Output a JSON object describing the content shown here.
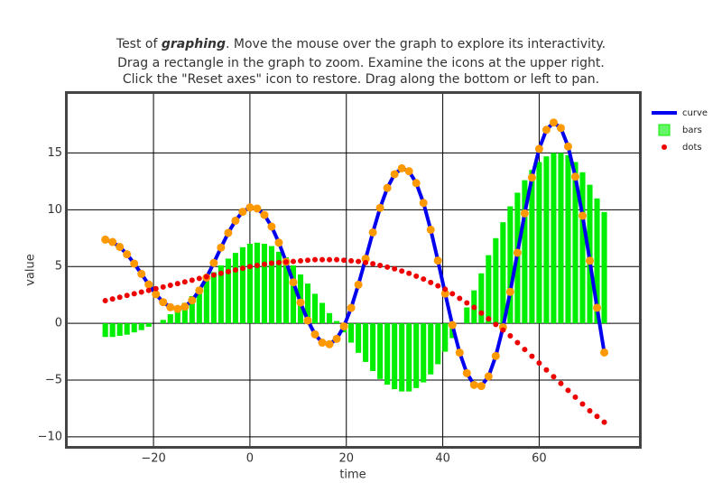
{
  "chart_data": {
    "type": "combo",
    "title": [
      [
        "Test of ",
        "graphing",
        ". Move the mouse over the graph to explore its interactivity."
      ],
      [
        "Drag a rectangle in the graph to zoom. Examine the icons at the upper right."
      ],
      [
        "Click the \"Reset axes\" icon to restore. Drag along the bottom or left to pan."
      ]
    ],
    "x_label": "time",
    "y_label": "value",
    "x": [
      -30,
      -28.5,
      -27,
      -25.5,
      -24,
      -22.5,
      -21,
      -19.5,
      -18,
      -16.5,
      -15,
      -13.5,
      -12,
      -10.5,
      -9,
      -7.5,
      -6,
      -4.5,
      -3,
      -1.5,
      0,
      1.5,
      3,
      4.5,
      6,
      7.5,
      9,
      10.5,
      12,
      13.5,
      15,
      16.5,
      18,
      19.5,
      21,
      22.5,
      24,
      25.5,
      27,
      28.5,
      30,
      31.5,
      33,
      34.5,
      36,
      37.5,
      39,
      40.5,
      42,
      43.5,
      45,
      46.5,
      48,
      49.5,
      51,
      52.5,
      54,
      55.5,
      57,
      58.5,
      60,
      61.5,
      63,
      64.5,
      66,
      67.5,
      69,
      70.5,
      72,
      73.5
    ],
    "series": [
      {
        "name": "curve",
        "type": "line",
        "color": "#0000ee",
        "marker_color": "#ff9900",
        "values": [
          7.37,
          7.16,
          6.73,
          6.08,
          5.26,
          4.35,
          3.42,
          2.56,
          1.86,
          1.42,
          1.27,
          1.47,
          2.02,
          2.89,
          4.02,
          5.32,
          6.67,
          7.96,
          9.04,
          9.82,
          10.2,
          10.11,
          9.54,
          8.52,
          7.1,
          5.42,
          3.61,
          1.83,
          0.25,
          -0.97,
          -1.7,
          -1.84,
          -1.37,
          -0.27,
          1.36,
          3.4,
          5.68,
          8.0,
          10.16,
          11.92,
          13.13,
          13.65,
          13.39,
          12.35,
          10.6,
          8.24,
          5.52,
          2.62,
          -0.15,
          -2.58,
          -4.39,
          -5.42,
          -5.52,
          -4.67,
          -2.88,
          -0.35,
          2.77,
          6.21,
          9.68,
          12.83,
          15.36,
          17.04,
          17.68,
          17.19,
          15.57,
          12.91,
          9.47,
          5.51,
          1.37,
          -2.57
        ]
      },
      {
        "name": "bars",
        "type": "bar",
        "color": "#00ee00",
        "values": [
          -1.2,
          -1.2,
          -1.1,
          -1.0,
          -0.8,
          -0.6,
          -0.3,
          0,
          0.3,
          0.8,
          1.2,
          1.8,
          2.4,
          3.2,
          3.8,
          4.5,
          5.1,
          5.7,
          6.2,
          6.7,
          7.0,
          7.1,
          7.0,
          6.8,
          6.3,
          5.8,
          5.1,
          4.3,
          3.5,
          2.6,
          1.8,
          0.9,
          0.2,
          -0.8,
          -1.7,
          -2.6,
          -3.4,
          -4.2,
          -4.9,
          -5.4,
          -5.8,
          -6.0,
          -6.0,
          -5.7,
          -5.2,
          -4.5,
          -3.6,
          -2.5,
          -1.3,
          0,
          1.4,
          2.9,
          4.4,
          6.0,
          7.5,
          8.9,
          10.3,
          11.5,
          12.6,
          13.5,
          14.2,
          14.7,
          15.0,
          15.0,
          14.8,
          14.2,
          13.3,
          12.2,
          11.0,
          9.8
        ]
      },
      {
        "name": "dots",
        "type": "scatter",
        "color": "#ee0000",
        "values": [
          2.0,
          2.15,
          2.3,
          2.45,
          2.6,
          2.75,
          2.9,
          3.05,
          3.2,
          3.35,
          3.5,
          3.65,
          3.8,
          3.95,
          4.1,
          4.25,
          4.4,
          4.55,
          4.7,
          4.85,
          5.0,
          5.1,
          5.2,
          5.3,
          5.35,
          5.4,
          5.45,
          5.5,
          5.55,
          5.6,
          5.6,
          5.6,
          5.6,
          5.55,
          5.5,
          5.45,
          5.35,
          5.25,
          5.1,
          4.95,
          4.8,
          4.6,
          4.4,
          4.15,
          3.9,
          3.6,
          3.3,
          3.0,
          2.6,
          2.2,
          1.8,
          1.4,
          0.9,
          0.4,
          -0.1,
          -0.6,
          -1.1,
          -1.7,
          -2.3,
          -2.9,
          -3.5,
          -4.1,
          -4.7,
          -5.3,
          -5.9,
          -6.5,
          -7.1,
          -7.7,
          -8.2,
          -8.7
        ]
      }
    ],
    "xlim": [
      -37.8,
      80.7
    ],
    "ylim": [
      -10.8,
      20.2
    ],
    "xticks": [
      {
        "value": -20,
        "label": "−20"
      },
      0,
      20,
      40,
      60
    ],
    "yticks": [
      {
        "value": -10,
        "label": "−10"
      },
      {
        "value": -5,
        "label": "−5"
      },
      0,
      5,
      10,
      15
    ],
    "grid": true,
    "legend": "outside-right-top"
  }
}
